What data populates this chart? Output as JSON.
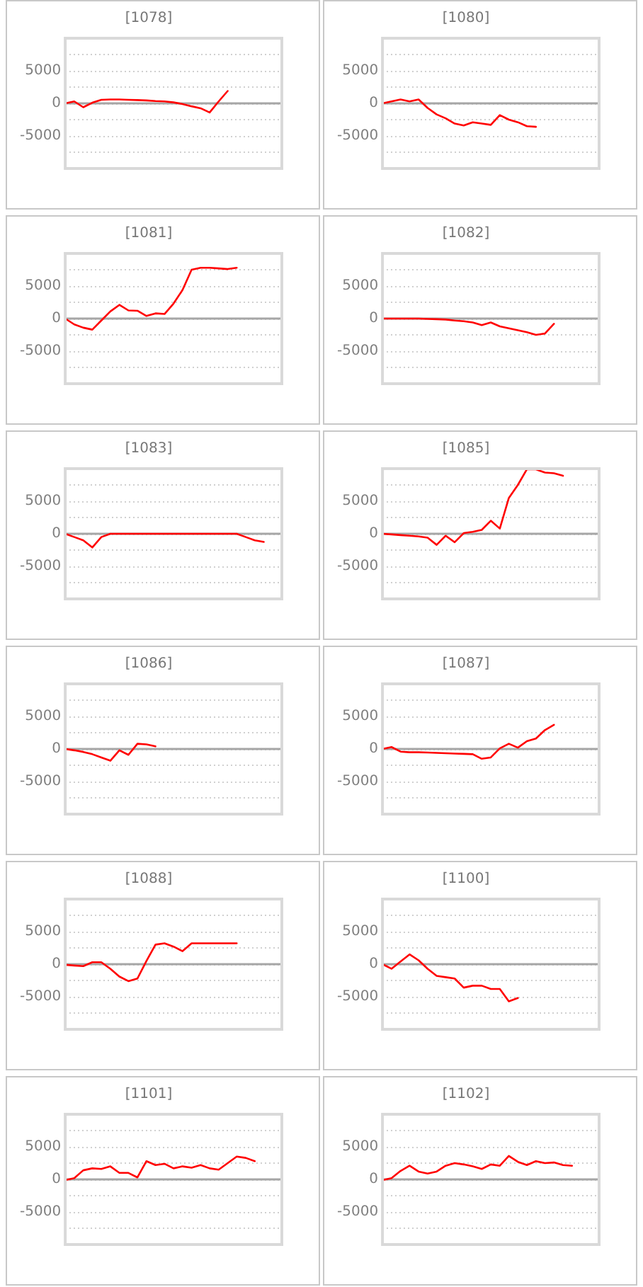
{
  "chart_data": [
    {
      "type": "line",
      "title": "[1078]",
      "categories": [
        null,
        null,
        null,
        null,
        null,
        null,
        null,
        null,
        null,
        null,
        null,
        null,
        null,
        null,
        null,
        null,
        null,
        null,
        null,
        null,
        null,
        null,
        null,
        null,
        null
      ],
      "color": "#ff0000",
      "values": [
        0,
        300,
        -600,
        100,
        550,
        600,
        600,
        550,
        500,
        450,
        350,
        300,
        150,
        -100,
        -450,
        -750,
        -1400,
        300,
        1900,
        null,
        null,
        null,
        null,
        null,
        null
      ],
      "ylim": [
        -10000,
        10000
      ],
      "yticks": [
        {
          "value": -7500,
          "label": null
        },
        -5000,
        {
          "value": -2500,
          "label": null
        },
        0,
        {
          "value": 2500,
          "label": null
        },
        5000,
        {
          "value": 7500,
          "label": null
        }
      ],
      "grid": "y",
      "tick_labels": "y",
      "marker": "none"
    },
    {
      "type": "line",
      "title": "[1080]",
      "categories": [
        null,
        null,
        null,
        null,
        null,
        null,
        null,
        null,
        null,
        null,
        null,
        null,
        null,
        null,
        null,
        null,
        null,
        null,
        null,
        null,
        null,
        null,
        null,
        null,
        null
      ],
      "color": "#ff0000",
      "values": [
        0,
        300,
        600,
        300,
        600,
        -700,
        -1700,
        -2300,
        -3100,
        -3400,
        -2900,
        -3100,
        -3300,
        -1800,
        -2500,
        -2900,
        -3500,
        -3600,
        null,
        null,
        null,
        null,
        null,
        null,
        null
      ],
      "ylim": [
        -10000,
        10000
      ],
      "yticks": [
        {
          "value": -7500,
          "label": null
        },
        -5000,
        {
          "value": -2500,
          "label": null
        },
        0,
        {
          "value": 2500,
          "label": null
        },
        5000,
        {
          "value": 7500,
          "label": null
        }
      ],
      "grid": "y",
      "tick_labels": "y",
      "marker": "none"
    },
    {
      "type": "line",
      "title": "[1081]",
      "categories": [
        null,
        null,
        null,
        null,
        null,
        null,
        null,
        null,
        null,
        null,
        null,
        null,
        null,
        null,
        null,
        null,
        null,
        null,
        null,
        null,
        null,
        null,
        null,
        null,
        null
      ],
      "color": "#ff0000",
      "values": [
        0,
        -900,
        -1400,
        -1700,
        -300,
        1100,
        2100,
        1250,
        1200,
        400,
        800,
        700,
        2300,
        4400,
        7500,
        7800,
        7800,
        7700,
        7600,
        7800,
        null,
        null,
        null,
        null,
        null
      ],
      "ylim": [
        -10000,
        10000
      ],
      "yticks": [
        {
          "value": -7500,
          "label": null
        },
        -5000,
        {
          "value": -2500,
          "label": null
        },
        0,
        {
          "value": 2500,
          "label": null
        },
        5000,
        {
          "value": 7500,
          "label": null
        }
      ],
      "grid": "y",
      "tick_labels": "y",
      "marker": "none"
    },
    {
      "type": "line",
      "title": "[1082]",
      "categories": [
        null,
        null,
        null,
        null,
        null,
        null,
        null,
        null,
        null,
        null,
        null,
        null,
        null,
        null,
        null,
        null,
        null,
        null,
        null,
        null,
        null,
        null,
        null,
        null,
        null
      ],
      "color": "#ff0000",
      "values": [
        0,
        0,
        0,
        0,
        0,
        -50,
        -100,
        -150,
        -300,
        -400,
        -600,
        -1000,
        -600,
        -1200,
        -1500,
        -1800,
        -2100,
        -2500,
        -2300,
        -800,
        null,
        null,
        null,
        null,
        null
      ],
      "ylim": [
        -10000,
        10000
      ],
      "yticks": [
        {
          "value": -7500,
          "label": null
        },
        -5000,
        {
          "value": -2500,
          "label": null
        },
        0,
        {
          "value": 2500,
          "label": null
        },
        5000,
        {
          "value": 7500,
          "label": null
        }
      ],
      "grid": "y",
      "tick_labels": "y",
      "marker": "none"
    },
    {
      "type": "line",
      "title": "[1083]",
      "categories": [
        null,
        null,
        null,
        null,
        null,
        null,
        null,
        null,
        null,
        null,
        null,
        null,
        null,
        null,
        null,
        null,
        null,
        null,
        null,
        null,
        null,
        null,
        null,
        null,
        null
      ],
      "color": "#ff0000",
      "values": [
        0,
        -500,
        -1000,
        -2100,
        -500,
        0,
        0,
        0,
        0,
        0,
        0,
        0,
        0,
        0,
        0,
        0,
        0,
        0,
        0,
        0,
        -500,
        -1000,
        -1250,
        null,
        null
      ],
      "ylim": [
        -10000,
        10000
      ],
      "yticks": [
        {
          "value": -7500,
          "label": null
        },
        -5000,
        {
          "value": -2500,
          "label": null
        },
        0,
        {
          "value": 2500,
          "label": null
        },
        5000,
        {
          "value": 7500,
          "label": null
        }
      ],
      "grid": "y",
      "tick_labels": "y",
      "marker": "none"
    },
    {
      "type": "line",
      "title": "[1085]",
      "categories": [
        null,
        null,
        null,
        null,
        null,
        null,
        null,
        null,
        null,
        null,
        null,
        null,
        null,
        null,
        null,
        null,
        null,
        null,
        null,
        null,
        null,
        null,
        null,
        null,
        null
      ],
      "color": "#ff0000",
      "values": [
        0,
        -100,
        -200,
        -300,
        -400,
        -600,
        -1700,
        -300,
        -1300,
        100,
        300,
        600,
        2000,
        800,
        5500,
        7500,
        9900,
        9900,
        9400,
        9300,
        8900,
        null,
        null,
        null,
        null
      ],
      "ylim": [
        -10000,
        10000
      ],
      "yticks": [
        {
          "value": -7500,
          "label": null
        },
        -5000,
        {
          "value": -2500,
          "label": null
        },
        0,
        {
          "value": 2500,
          "label": null
        },
        5000,
        {
          "value": 7500,
          "label": null
        }
      ],
      "grid": "y",
      "tick_labels": "y",
      "marker": "none"
    },
    {
      "type": "line",
      "title": "[1086]",
      "categories": [
        null,
        null,
        null,
        null,
        null,
        null,
        null,
        null,
        null,
        null,
        null,
        null,
        null,
        null,
        null,
        null,
        null,
        null,
        null,
        null,
        null,
        null,
        null,
        null,
        null
      ],
      "color": "#ff0000",
      "values": [
        0,
        -200,
        -450,
        -800,
        -1300,
        -1800,
        -200,
        -900,
        800,
        700,
        400,
        null,
        null,
        null,
        null,
        null,
        null,
        null,
        null,
        null,
        null,
        null,
        null,
        null,
        null
      ],
      "ylim": [
        -10000,
        10000
      ],
      "yticks": [
        {
          "value": -7500,
          "label": null
        },
        -5000,
        {
          "value": -2500,
          "label": null
        },
        0,
        {
          "value": 2500,
          "label": null
        },
        5000,
        {
          "value": 7500,
          "label": null
        }
      ],
      "grid": "y",
      "tick_labels": "y",
      "marker": "none"
    },
    {
      "type": "line",
      "title": "[1087]",
      "categories": [
        null,
        null,
        null,
        null,
        null,
        null,
        null,
        null,
        null,
        null,
        null,
        null,
        null,
        null,
        null,
        null,
        null,
        null,
        null,
        null,
        null,
        null,
        null,
        null,
        null
      ],
      "color": "#ff0000",
      "values": [
        0,
        300,
        -400,
        -500,
        -500,
        -550,
        -600,
        -650,
        -700,
        -750,
        -800,
        -1500,
        -1300,
        100,
        800,
        200,
        1200,
        1600,
        2900,
        3700,
        null,
        null,
        null,
        null,
        null
      ],
      "ylim": [
        -10000,
        10000
      ],
      "yticks": [
        {
          "value": -7500,
          "label": null
        },
        -5000,
        {
          "value": -2500,
          "label": null
        },
        0,
        {
          "value": 2500,
          "label": null
        },
        5000,
        {
          "value": 7500,
          "label": null
        }
      ],
      "grid": "y",
      "tick_labels": "y",
      "marker": "none"
    },
    {
      "type": "line",
      "title": "[1088]",
      "categories": [
        null,
        null,
        null,
        null,
        null,
        null,
        null,
        null,
        null,
        null,
        null,
        null,
        null,
        null,
        null,
        null,
        null,
        null,
        null,
        null,
        null,
        null,
        null,
        null,
        null
      ],
      "color": "#ff0000",
      "values": [
        -100,
        -200,
        -300,
        300,
        300,
        -700,
        -1900,
        -2600,
        -2200,
        500,
        3000,
        3200,
        2700,
        2000,
        3200,
        3200,
        3200,
        3200,
        3200,
        3200,
        null,
        null,
        null,
        null,
        null
      ],
      "ylim": [
        -10000,
        10000
      ],
      "yticks": [
        {
          "value": -7500,
          "label": null
        },
        -5000,
        {
          "value": -2500,
          "label": null
        },
        0,
        {
          "value": 2500,
          "label": null
        },
        5000,
        {
          "value": 7500,
          "label": null
        }
      ],
      "grid": "y",
      "tick_labels": "y",
      "marker": "none"
    },
    {
      "type": "line",
      "title": "[1100]",
      "categories": [
        null,
        null,
        null,
        null,
        null,
        null,
        null,
        null,
        null,
        null,
        null,
        null,
        null,
        null,
        null,
        null,
        null,
        null,
        null,
        null,
        null,
        null,
        null,
        null,
        null
      ],
      "color": "#ff0000",
      "values": [
        0,
        -700,
        400,
        1500,
        600,
        -700,
        -1800,
        -2000,
        -2200,
        -3600,
        -3300,
        -3300,
        -3800,
        -3800,
        -5700,
        -5200,
        null,
        null,
        null,
        null,
        null,
        null,
        null,
        null,
        null
      ],
      "ylim": [
        -10000,
        10000
      ],
      "yticks": [
        {
          "value": -7500,
          "label": null
        },
        -5000,
        {
          "value": -2500,
          "label": null
        },
        0,
        {
          "value": 2500,
          "label": null
        },
        5000,
        {
          "value": 7500,
          "label": null
        }
      ],
      "grid": "y",
      "tick_labels": "y",
      "marker": "none"
    },
    {
      "type": "line",
      "title": "[1101]",
      "categories": [
        null,
        null,
        null,
        null,
        null,
        null,
        null,
        null,
        null,
        null,
        null,
        null,
        null,
        null,
        null,
        null,
        null,
        null,
        null,
        null,
        null,
        null,
        null,
        null,
        null
      ],
      "color": "#ff0000",
      "values": [
        -100,
        200,
        1400,
        1700,
        1600,
        2000,
        1000,
        1000,
        300,
        2800,
        2200,
        2400,
        1700,
        2000,
        1800,
        2200,
        1700,
        1500,
        2500,
        3500,
        3300,
        2800,
        null,
        null,
        null
      ],
      "ylim": [
        -10000,
        10000
      ],
      "yticks": [
        {
          "value": -7500,
          "label": null
        },
        -5000,
        {
          "value": -2500,
          "label": null
        },
        0,
        {
          "value": 2500,
          "label": null
        },
        5000,
        {
          "value": 7500,
          "label": null
        }
      ],
      "grid": "y",
      "tick_labels": "y",
      "marker": "none"
    },
    {
      "type": "line",
      "title": "[1102]",
      "categories": [
        null,
        null,
        null,
        null,
        null,
        null,
        null,
        null,
        null,
        null,
        null,
        null,
        null,
        null,
        null,
        null,
        null,
        null,
        null,
        null,
        null,
        null,
        null,
        null,
        null
      ],
      "color": "#ff0000",
      "values": [
        -100,
        200,
        1300,
        2100,
        1200,
        900,
        1200,
        2100,
        2500,
        2300,
        2000,
        1600,
        2300,
        2100,
        3600,
        2700,
        2200,
        2800,
        2500,
        2600,
        2200,
        2100,
        null,
        null,
        null
      ],
      "ylim": [
        -10000,
        10000
      ],
      "yticks": [
        {
          "value": -7500,
          "label": null
        },
        -5000,
        {
          "value": -2500,
          "label": null
        },
        0,
        {
          "value": 2500,
          "label": null
        },
        5000,
        {
          "value": 7500,
          "label": null
        }
      ],
      "grid": "y",
      "tick_labels": "y",
      "marker": "none"
    }
  ]
}
